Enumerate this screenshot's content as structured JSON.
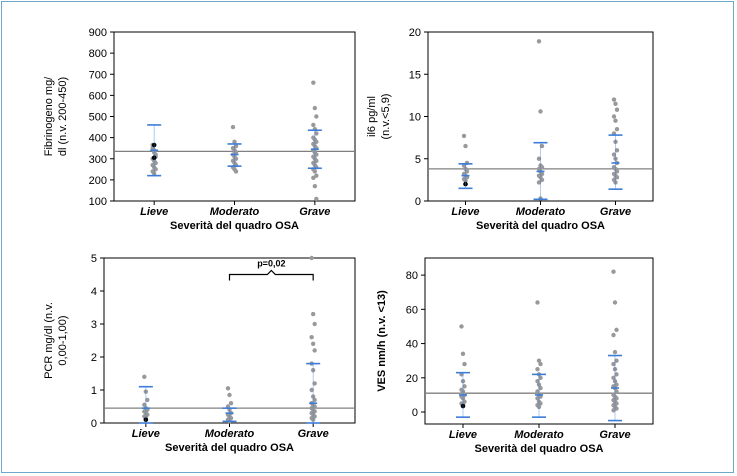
{
  "chart_data": [
    {
      "type": "scatter",
      "xlabel": "Severità del quadro OSA",
      "ylabel_lines": [
        "Fibrinogeno mg/",
        "dl (n.v. 200-450)"
      ],
      "ylabel_bold": false,
      "categories": [
        "Lieve",
        "Moderato",
        "Grave"
      ],
      "ylim": [
        100,
        900
      ],
      "yticks": [
        100,
        200,
        300,
        400,
        500,
        600,
        700,
        800,
        900
      ],
      "reference_line": 335,
      "points": [
        [
          365,
          340,
          320,
          300,
          290,
          280,
          270,
          260,
          250,
          240,
          230,
          310,
          350,
          330
        ],
        [
          450,
          380,
          360,
          350,
          340,
          330,
          320,
          310,
          300,
          290,
          280,
          270,
          260,
          250,
          240
        ],
        [
          660,
          540,
          500,
          460,
          440,
          420,
          400,
          390,
          380,
          370,
          360,
          350,
          340,
          330,
          320,
          310,
          300,
          290,
          280,
          270,
          260,
          250,
          240,
          220,
          210,
          170,
          110
        ]
      ],
      "highlight_points": [
        [
          365,
          305
        ],
        [],
        []
      ],
      "mean": [
        340,
        320,
        345
      ],
      "sd_upper": [
        460,
        370,
        435
      ],
      "sd_lower": [
        220,
        265,
        255
      ],
      "annotation": null
    },
    {
      "type": "scatter",
      "xlabel": "Severità del quadro OSA",
      "ylabel_lines": [
        "il6 pg/ml",
        "(n.v.<5,9)"
      ],
      "ylabel_bold": false,
      "categories": [
        "Lieve",
        "Moderato",
        "Grave"
      ],
      "ylim": [
        0,
        20
      ],
      "yticks": [
        0,
        5,
        10,
        15,
        20
      ],
      "reference_line": 3.8,
      "points": [
        [
          7.7,
          6.5,
          4.5,
          4.2,
          3.8,
          3.5,
          3.2,
          3.0,
          2.8,
          2.6,
          2.4
        ],
        [
          18.9,
          10.6,
          6.5,
          5.0,
          4.2,
          4.0,
          3.8,
          3.5,
          3.2,
          3.0,
          2.8,
          2.5,
          2.2,
          0.3
        ],
        [
          12.0,
          11.5,
          10.8,
          10.0,
          9.5,
          8.5,
          8.0,
          7.0,
          6.0,
          5.5,
          5.0,
          4.5,
          4.0,
          3.8,
          3.5,
          3.2,
          3.0,
          2.8,
          2.5,
          2.2
        ]
      ],
      "highlight_points": [
        [
          2.0
        ],
        [],
        []
      ],
      "mean": [
        3.0,
        3.5,
        4.5
      ],
      "sd_upper": [
        4.4,
        6.9,
        7.8
      ],
      "sd_lower": [
        1.5,
        0.2,
        1.4
      ],
      "annotation": null
    },
    {
      "type": "scatter",
      "xlabel": "Severità del quadro OSA",
      "ylabel_lines": [
        "PCR mg/dl (n.v.",
        "0,00-1,00)"
      ],
      "ylabel_bold": false,
      "categories": [
        "Lieve",
        "Moderato",
        "Grave"
      ],
      "ylim": [
        0,
        5
      ],
      "yticks": [
        0,
        1,
        2,
        3,
        4,
        5
      ],
      "reference_line": 0.45,
      "points": [
        [
          1.4,
          0.95,
          0.7,
          0.55,
          0.45,
          0.4,
          0.35,
          0.3,
          0.25,
          0.2,
          0.15
        ],
        [
          1.05,
          0.85,
          0.6,
          0.5,
          0.4,
          0.3,
          0.25,
          0.2,
          0.15,
          0.1,
          0.05
        ],
        [
          5.0,
          3.3,
          3.0,
          2.6,
          2.4,
          2.2,
          1.8,
          1.6,
          1.2,
          1.0,
          0.8,
          0.7,
          0.6,
          0.55,
          0.5,
          0.45,
          0.4,
          0.35,
          0.3,
          0.25,
          0.2,
          0.15,
          0.1
        ]
      ],
      "highlight_points": [
        [
          0.1
        ],
        [],
        []
      ],
      "mean": [
        0.45,
        0.3,
        0.6
      ],
      "sd_upper": [
        1.1,
        0.45,
        1.8
      ],
      "sd_lower": [
        0.0,
        0.05,
        0.0
      ],
      "annotation": {
        "text": "p=0,02",
        "from": 1,
        "to": 2,
        "value": 4.5
      }
    },
    {
      "type": "scatter",
      "xlabel": "Severità del quadro OSA",
      "ylabel_lines": [
        "VES nm/h (n.v. <13)"
      ],
      "ylabel_bold": true,
      "categories": [
        "Lieve",
        "Moderato",
        "Grave"
      ],
      "ylim": [
        -7,
        90
      ],
      "yticks": [
        0,
        20,
        40,
        60,
        80
      ],
      "reference_line": 11,
      "points": [
        [
          50,
          34,
          28,
          22,
          18,
          15,
          13,
          12,
          10,
          9,
          8,
          6,
          5,
          4
        ],
        [
          64,
          30,
          28,
          25,
          22,
          20,
          18,
          16,
          14,
          12,
          10,
          9,
          8,
          6,
          5,
          4,
          3
        ],
        [
          82,
          64,
          48,
          45,
          35,
          30,
          28,
          25,
          22,
          20,
          18,
          16,
          15,
          14,
          12,
          10,
          9,
          8,
          7,
          6,
          5,
          4,
          3,
          2,
          1
        ]
      ],
      "highlight_points": [
        [
          3.5
        ],
        [],
        []
      ],
      "mean": [
        10,
        10,
        14
      ],
      "sd_upper": [
        23,
        22,
        33
      ],
      "sd_lower": [
        -3,
        -3,
        -5
      ],
      "annotation": null
    }
  ],
  "colors": {
    "point": "#999999",
    "highlight": "#000000",
    "mean_line": "#3b7dd8",
    "reference_line": "#808080",
    "frame": "#6fa8c8"
  }
}
